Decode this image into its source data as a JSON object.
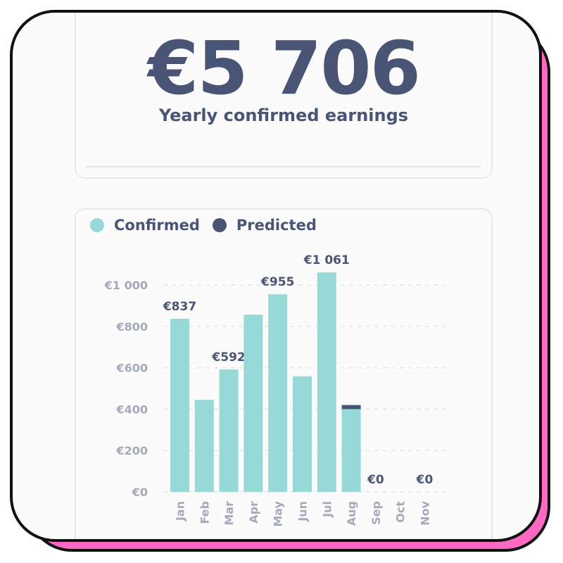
{
  "summary": {
    "amount": "€5 706",
    "label": "Yearly confirmed earnings"
  },
  "colors": {
    "confirmed": "#97d9d7",
    "predicted": "#4a5576",
    "text": "#4a5576",
    "axis_text": "#a4a9bb",
    "frame_shadow": "#ff69c4"
  },
  "chart_data": {
    "type": "bar",
    "stacked": true,
    "categories": [
      "Jan",
      "Feb",
      "Mar",
      "Apr",
      "May",
      "Jun",
      "Jul",
      "Aug",
      "Sep",
      "Oct",
      "Nov"
    ],
    "series": [
      {
        "name": "Confirmed",
        "values": [
          837,
          445,
          592,
          857,
          955,
          559,
          1061,
          400,
          0,
          0,
          0
        ]
      },
      {
        "name": "Predicted",
        "values": [
          0,
          0,
          0,
          0,
          0,
          0,
          0,
          20,
          0,
          0,
          0
        ]
      }
    ],
    "data_labels": [
      "€837",
      "",
      "€592",
      "",
      "€955",
      "",
      "€1 061",
      "",
      "€0",
      "",
      "€0"
    ],
    "y_ticks": [
      0,
      200,
      400,
      600,
      800,
      1000
    ],
    "y_tick_labels": [
      "€0",
      "€200",
      "€400",
      "€600",
      "€800",
      "€1 000"
    ],
    "ylim": [
      0,
      1000
    ],
    "grid": true,
    "legend_position": "top-left"
  }
}
